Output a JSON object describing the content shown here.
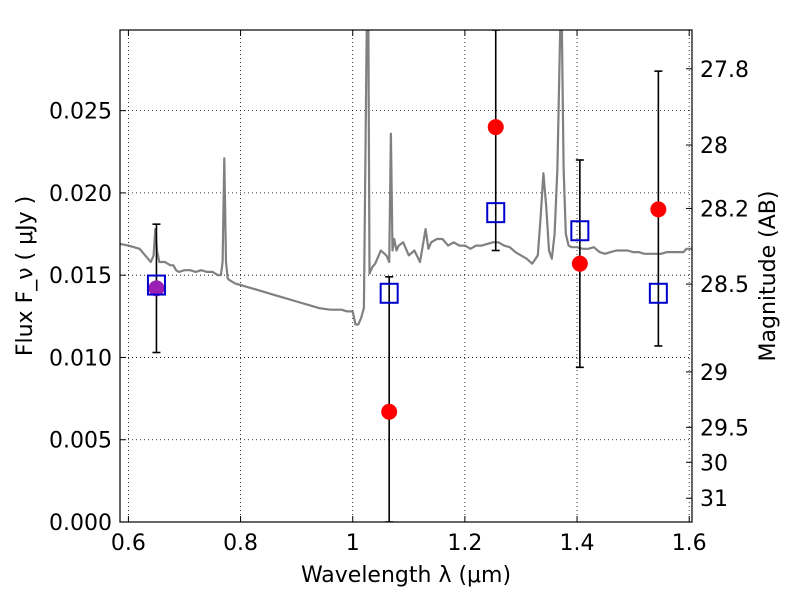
{
  "chart_data": {
    "type": "scatter",
    "xlabel": "Wavelength  λ (μm)",
    "ylabel": "Flux  F_ν  ( μJy )",
    "ylabel_right": "Magnitude (AB)",
    "xlim": [
      0.585,
      1.605
    ],
    "ylim": [
      0.0,
      0.0299
    ],
    "x_ticks": [
      0.6,
      0.8,
      1.0,
      1.2,
      1.4,
      1.6
    ],
    "x_tick_labels": [
      "0.6",
      "0.8",
      "1",
      "1.2",
      "1.4",
      "1.6"
    ],
    "y_ticks": [
      0.0,
      0.005,
      0.01,
      0.015,
      0.02,
      0.025
    ],
    "y_tick_labels": [
      "0.000",
      "0.005",
      "0.010",
      "0.015",
      "0.020",
      "0.025"
    ],
    "right_ticks": [
      {
        "mag": 27.8,
        "label": "27.8"
      },
      {
        "mag": 28.0,
        "label": "28"
      },
      {
        "mag": 28.2,
        "label": "28.2"
      },
      {
        "mag": 28.5,
        "label": "28.5"
      },
      {
        "mag": 29.0,
        "label": "29"
      },
      {
        "mag": 29.5,
        "label": "29.5"
      },
      {
        "mag": 30.0,
        "label": "30"
      },
      {
        "mag": 31.0,
        "label": "31"
      }
    ],
    "grid": true,
    "colors": {
      "model": "#808080",
      "observed": "#ff0000",
      "model_band": "#0000cc",
      "errorbar": "#000000",
      "overlap": "#9a1fb4"
    },
    "series": [
      {
        "kind": "line",
        "x": [
          0.585,
          0.6,
          0.61,
          0.62,
          0.63,
          0.64,
          0.645,
          0.648,
          0.651,
          0.655,
          0.66,
          0.665,
          0.67,
          0.675,
          0.68,
          0.685,
          0.69,
          0.7,
          0.71,
          0.72,
          0.73,
          0.74,
          0.75,
          0.76,
          0.765,
          0.768,
          0.771,
          0.774,
          0.777,
          0.78,
          0.79,
          0.8,
          0.82,
          0.84,
          0.86,
          0.88,
          0.9,
          0.92,
          0.94,
          0.96,
          0.98,
          0.99,
          1.0,
          1.005,
          1.01,
          1.015,
          1.02,
          1.025,
          1.028,
          1.03,
          1.035,
          1.04,
          1.05,
          1.06,
          1.065,
          1.068,
          1.071,
          1.074,
          1.078,
          1.082,
          1.09,
          1.1,
          1.11,
          1.12,
          1.13,
          1.135,
          1.14,
          1.15,
          1.16,
          1.17,
          1.18,
          1.19,
          1.2,
          1.21,
          1.22,
          1.23,
          1.24,
          1.25,
          1.26,
          1.27,
          1.28,
          1.29,
          1.3,
          1.31,
          1.32,
          1.33,
          1.335,
          1.34,
          1.345,
          1.35,
          1.355,
          1.36,
          1.365,
          1.37,
          1.373,
          1.376,
          1.38,
          1.385,
          1.39,
          1.4,
          1.41,
          1.42,
          1.43,
          1.44,
          1.45,
          1.46,
          1.47,
          1.48,
          1.49,
          1.5,
          1.51,
          1.52,
          1.53,
          1.54,
          1.55,
          1.56,
          1.57,
          1.58,
          1.59,
          1.595,
          1.6,
          1.605
        ],
        "y": [
          0.0169,
          0.0168,
          0.0167,
          0.0166,
          0.0162,
          0.0158,
          0.0162,
          0.0178,
          0.0165,
          0.0158,
          0.0158,
          0.0158,
          0.0157,
          0.0156,
          0.0156,
          0.0153,
          0.0152,
          0.0153,
          0.0153,
          0.0152,
          0.0153,
          0.0152,
          0.0152,
          0.015,
          0.015,
          0.0158,
          0.0221,
          0.0158,
          0.0148,
          0.0147,
          0.0145,
          0.0144,
          0.0142,
          0.014,
          0.0138,
          0.0136,
          0.0134,
          0.0132,
          0.013,
          0.0129,
          0.0129,
          0.0128,
          0.0128,
          0.012,
          0.012,
          0.0124,
          0.013,
          0.0299,
          0.0299,
          0.0151,
          0.0155,
          0.0157,
          0.0165,
          0.0162,
          0.0158,
          0.0236,
          0.0165,
          0.0172,
          0.0165,
          0.0168,
          0.017,
          0.0162,
          0.0165,
          0.0158,
          0.0178,
          0.0166,
          0.017,
          0.0172,
          0.0172,
          0.0168,
          0.017,
          0.0168,
          0.0168,
          0.0166,
          0.0168,
          0.0168,
          0.0169,
          0.017,
          0.017,
          0.0168,
          0.0167,
          0.0164,
          0.0162,
          0.016,
          0.0157,
          0.0162,
          0.0185,
          0.0212,
          0.0192,
          0.0165,
          0.016,
          0.0175,
          0.0215,
          0.0299,
          0.0299,
          0.0215,
          0.0175,
          0.0168,
          0.0167,
          0.0167,
          0.0166,
          0.0166,
          0.0167,
          0.0164,
          0.0163,
          0.0164,
          0.0165,
          0.0165,
          0.0165,
          0.0164,
          0.0164,
          0.0163,
          0.0163,
          0.0163,
          0.0163,
          0.0164,
          0.0164,
          0.0164,
          0.0164,
          0.0166,
          0.0166,
          0.0166
        ]
      },
      {
        "kind": "observed",
        "x": [
          0.65,
          1.065,
          1.255,
          1.405,
          1.545
        ],
        "y": [
          0.0142,
          0.0067,
          0.024,
          0.0157,
          0.019
        ]
      },
      {
        "kind": "model_band",
        "x": [
          0.65,
          1.065,
          1.255,
          1.405,
          1.545
        ],
        "y": [
          0.0144,
          0.0139,
          0.0188,
          0.0177,
          0.0139
        ],
        "err_low": [
          0.0103,
          0.0,
          0.0165,
          0.0094,
          0.0107
        ],
        "err_high": [
          0.0181,
          0.0149,
          0.0299,
          0.022,
          0.0274
        ]
      }
    ]
  }
}
